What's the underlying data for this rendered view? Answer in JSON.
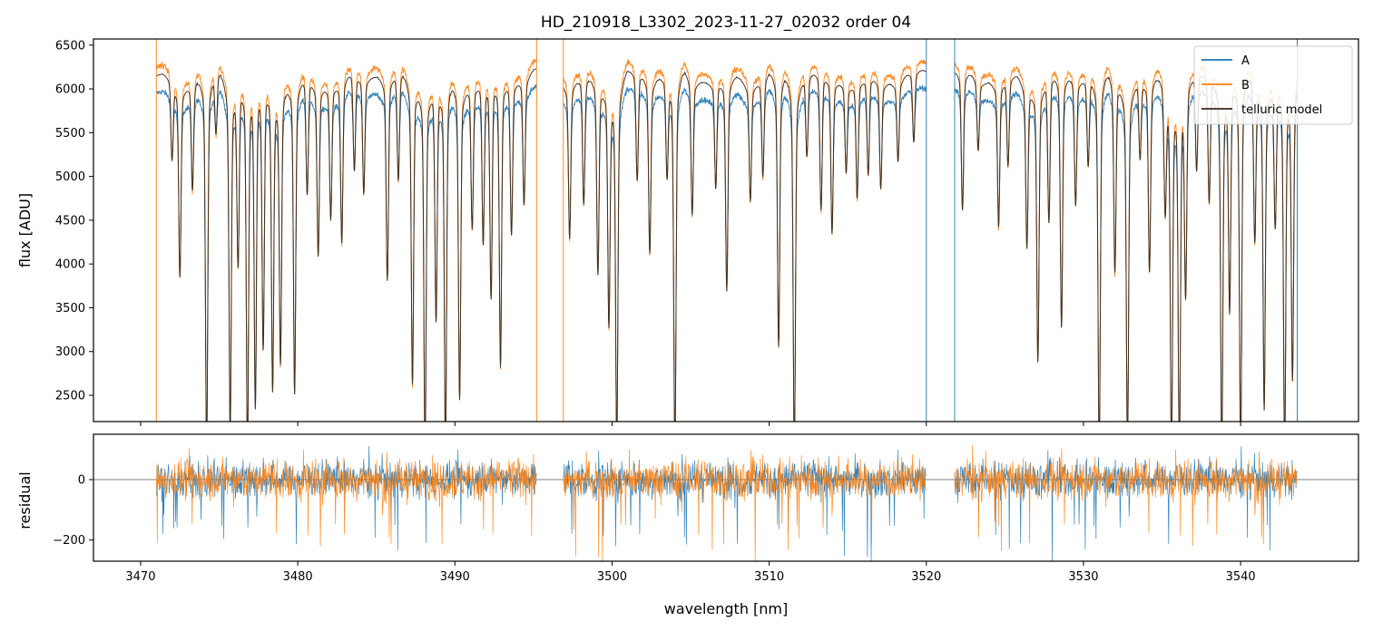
{
  "chart_data": {
    "type": "line",
    "title": "HD_210918_L3302_2023-11-27_02032  order 04",
    "xlabel": "wavelength [nm]",
    "x_ticks": [
      3470,
      3480,
      3490,
      3500,
      3510,
      3520,
      3530,
      3540
    ],
    "xlim": [
      3467.0,
      3547.5
    ],
    "panels": [
      {
        "id": "flux",
        "ylabel": "flux [ADU]",
        "ylim": [
          2200,
          6570
        ],
        "y_ticks": [
          2500,
          3000,
          3500,
          4000,
          4500,
          5000,
          5500,
          6000,
          6500
        ],
        "legend": {
          "placement": "top-right",
          "entries": [
            "A",
            "B",
            "telluric model"
          ]
        },
        "grid": false,
        "series": [
          {
            "name": "A",
            "color": "#1f77b4",
            "continuum": 5950,
            "segments": [
              [
                3471.0,
                3495.2
              ],
              [
                3496.9,
                3520.0
              ],
              [
                3521.8,
                3543.6
              ]
            ]
          },
          {
            "name": "B",
            "color": "#ff7f0e",
            "continuum": 6250,
            "segments": [
              [
                3471.0,
                3495.2
              ],
              [
                3496.9,
                3520.0
              ],
              [
                3521.8,
                3543.6
              ]
            ]
          },
          {
            "name": "telluric model",
            "color": "#3a2a1e",
            "continuum": 6150,
            "segments": [
              [
                3471.0,
                3495.2
              ],
              [
                3496.9,
                3520.0
              ],
              [
                3521.8,
                3543.6
              ]
            ]
          }
        ],
        "absorption_lines": [
          [
            3472.0,
            5300
          ],
          [
            3472.5,
            4100
          ],
          [
            3473.3,
            5000
          ],
          [
            3474.2,
            2250
          ],
          [
            3474.8,
            5500
          ],
          [
            3475.7,
            2450
          ],
          [
            3476.2,
            4200
          ],
          [
            3476.8,
            2250
          ],
          [
            3477.3,
            2700
          ],
          [
            3477.8,
            3300
          ],
          [
            3478.4,
            2900
          ],
          [
            3478.9,
            3200
          ],
          [
            3479.8,
            2850
          ],
          [
            3480.6,
            4900
          ],
          [
            3481.3,
            4300
          ],
          [
            3482.1,
            4700
          ],
          [
            3482.8,
            4400
          ],
          [
            3483.6,
            5100
          ],
          [
            3484.2,
            4900
          ],
          [
            3485.7,
            4000
          ],
          [
            3486.4,
            5000
          ],
          [
            3487.3,
            2950
          ],
          [
            3488.1,
            2250
          ],
          [
            3488.8,
            3600
          ],
          [
            3489.4,
            2250
          ],
          [
            3490.3,
            2800
          ],
          [
            3491.1,
            4600
          ],
          [
            3491.8,
            4400
          ],
          [
            3492.3,
            3800
          ],
          [
            3492.9,
            3100
          ],
          [
            3493.6,
            4500
          ],
          [
            3494.4,
            4800
          ],
          [
            3497.3,
            4500
          ],
          [
            3498.2,
            4800
          ],
          [
            3499.1,
            4100
          ],
          [
            3499.8,
            3600
          ],
          [
            3500.3,
            2300
          ],
          [
            3501.6,
            5000
          ],
          [
            3502.4,
            4300
          ],
          [
            3503.5,
            5100
          ],
          [
            3504.0,
            2250
          ],
          [
            3505.1,
            4700
          ],
          [
            3506.6,
            5000
          ],
          [
            3507.3,
            3900
          ],
          [
            3508.8,
            4900
          ],
          [
            3509.6,
            5100
          ],
          [
            3510.6,
            3300
          ],
          [
            3511.6,
            2250
          ],
          [
            3512.4,
            5300
          ],
          [
            3513.3,
            4700
          ],
          [
            3514.0,
            4500
          ],
          [
            3514.9,
            5200
          ],
          [
            3515.6,
            4900
          ],
          [
            3516.3,
            5100
          ],
          [
            3517.1,
            5000
          ],
          [
            3518.2,
            5300
          ],
          [
            3519.2,
            5400
          ],
          [
            3522.3,
            4700
          ],
          [
            3523.3,
            5400
          ],
          [
            3524.6,
            4600
          ],
          [
            3525.2,
            5200
          ],
          [
            3526.4,
            4400
          ],
          [
            3527.1,
            3200
          ],
          [
            3527.8,
            4600
          ],
          [
            3528.6,
            3500
          ],
          [
            3529.5,
            4800
          ],
          [
            3530.3,
            5200
          ],
          [
            3531.0,
            2250
          ],
          [
            3532.0,
            4100
          ],
          [
            3532.8,
            2250
          ],
          [
            3533.6,
            5300
          ],
          [
            3534.2,
            4100
          ],
          [
            3535.2,
            4800
          ],
          [
            3535.6,
            2250
          ],
          [
            3536.1,
            2250
          ],
          [
            3536.5,
            3900
          ],
          [
            3537.2,
            5100
          ],
          [
            3538.0,
            4800
          ],
          [
            3538.8,
            2250
          ],
          [
            3539.3,
            3700
          ],
          [
            3540.0,
            2250
          ],
          [
            3540.9,
            4400
          ],
          [
            3541.5,
            2700
          ],
          [
            3542.2,
            4600
          ],
          [
            3542.8,
            2250
          ],
          [
            3543.3,
            3000
          ]
        ]
      },
      {
        "id": "residual",
        "ylabel": "residual",
        "ylim": [
          -270,
          150
        ],
        "y_ticks": [
          -200,
          0
        ],
        "zero_line": true,
        "grid": false,
        "series": [
          {
            "name": "A",
            "color": "#1f77b4",
            "rms": 55
          },
          {
            "name": "B",
            "color": "#ff7f0e",
            "rms": 60
          }
        ]
      }
    ]
  }
}
